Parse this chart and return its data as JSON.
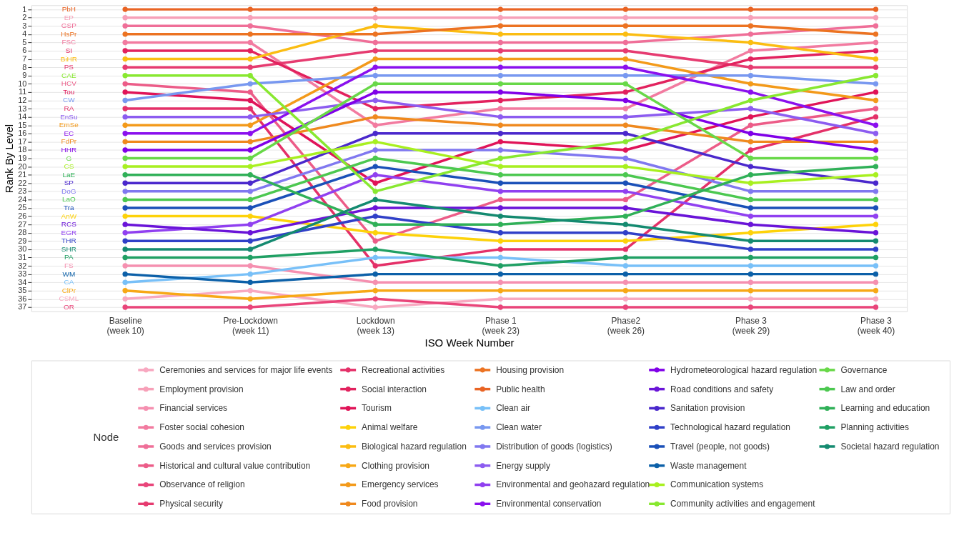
{
  "chart_data": {
    "type": "line",
    "xlabel": "ISO Week Number",
    "ylabel": "Rank By Level",
    "legend_title": "Node",
    "legend": "bottom",
    "grid": true,
    "marker": "circle",
    "line_style": "solid",
    "categories": [
      "Baseline\n(week 10)",
      "Pre-Lockdown\n(week 11)",
      "Lockdown\n(week 13)",
      "Phase 1\n(week 23)",
      "Phase2\n(week 26)",
      "Phase 3\n(week 29)",
      "Phase 3\n(week 40)"
    ],
    "ylim": [
      37.5,
      0.5
    ],
    "yticks": [
      1,
      2,
      3,
      4,
      5,
      6,
      7,
      8,
      9,
      10,
      11,
      12,
      13,
      14,
      15,
      16,
      17,
      18,
      19,
      20,
      21,
      22,
      23,
      24,
      25,
      26,
      27,
      28,
      29,
      30,
      31,
      32,
      33,
      34,
      35,
      36,
      37
    ],
    "series": [
      {
        "name": "Ceremonies and services for major life events",
        "color": "#f8a8c0",
        "values": [
          36,
          35,
          37,
          36,
          36,
          36,
          36
        ]
      },
      {
        "name": "Employment provision",
        "color": "#f7a0b8",
        "values": [
          2,
          2,
          2,
          2,
          2,
          2,
          2
        ]
      },
      {
        "name": "Financial services",
        "color": "#f590b0",
        "values": [
          32,
          32,
          34,
          34,
          34,
          34,
          34
        ]
      },
      {
        "name": "Foster social cohesion",
        "color": "#f27ba0",
        "values": [
          5,
          5,
          15,
          13,
          13,
          6,
          5
        ]
      },
      {
        "name": "Goods and services provision",
        "color": "#ef6f98",
        "values": [
          3,
          3,
          5,
          5,
          5,
          4,
          3
        ]
      },
      {
        "name": "Historical and cultural value contribution",
        "color": "#ec5c88",
        "values": [
          10,
          11,
          29,
          24,
          24,
          15,
          13
        ]
      },
      {
        "name": "Observance of religion",
        "color": "#e9457a",
        "values": [
          37,
          37,
          36,
          37,
          37,
          37,
          37
        ]
      },
      {
        "name": "Physical security",
        "color": "#e63b70",
        "values": [
          8,
          8,
          6,
          6,
          6,
          8,
          8
        ]
      },
      {
        "name": "Recreational activities",
        "color": "#e43068",
        "values": [
          13,
          13,
          32,
          30,
          30,
          18,
          14
        ]
      },
      {
        "name": "Social interaction",
        "color": "#e2225e",
        "values": [
          6,
          6,
          13,
          12,
          11,
          7,
          6
        ]
      },
      {
        "name": "Tourism",
        "color": "#e01458",
        "values": [
          11,
          12,
          22,
          17,
          18,
          14,
          11
        ]
      },
      {
        "name": "Animal welfare",
        "color": "#fdd20a",
        "values": [
          26,
          26,
          28,
          29,
          29,
          28,
          27
        ]
      },
      {
        "name": "Biological hazard regulation",
        "color": "#fbbd12",
        "values": [
          7,
          7,
          3,
          4,
          4,
          5,
          7
        ]
      },
      {
        "name": "Clothing provision",
        "color": "#f7a816",
        "values": [
          35,
          36,
          35,
          35,
          35,
          35,
          35
        ]
      },
      {
        "name": "Emergency services",
        "color": "#f39a1a",
        "values": [
          15,
          15,
          7,
          7,
          7,
          10,
          12
        ]
      },
      {
        "name": "Food provision",
        "color": "#ef891e",
        "values": [
          17,
          17,
          14,
          15,
          15,
          17,
          17
        ]
      },
      {
        "name": "Housing provision",
        "color": "#ec7322",
        "values": [
          4,
          4,
          4,
          3,
          3,
          3,
          4
        ]
      },
      {
        "name": "Public health",
        "color": "#e96424",
        "values": [
          1,
          1,
          1,
          1,
          1,
          1,
          1
        ]
      },
      {
        "name": "Clean air",
        "color": "#78c0f8",
        "values": [
          34,
          33,
          31,
          31,
          32,
          32,
          32
        ]
      },
      {
        "name": "Clean water",
        "color": "#7898f0",
        "values": [
          12,
          10,
          9,
          9,
          9,
          9,
          10
        ]
      },
      {
        "name": "Distribution of goods (logistics)",
        "color": "#8078f0",
        "values": [
          23,
          23,
          18,
          18,
          19,
          23,
          23
        ]
      },
      {
        "name": "Energy supply",
        "color": "#8c5cf0",
        "values": [
          14,
          14,
          12,
          14,
          14,
          13,
          16
        ]
      },
      {
        "name": "Environmental and geohazard regulation",
        "color": "#9040f0",
        "values": [
          28,
          27,
          21,
          23,
          23,
          26,
          26
        ]
      },
      {
        "name": "Environmental conservation",
        "color": "#8a10ee",
        "values": [
          16,
          16,
          8,
          8,
          8,
          11,
          15
        ]
      },
      {
        "name": "Hydrometeorological hazard regulation",
        "color": "#8000e8",
        "values": [
          18,
          18,
          11,
          11,
          12,
          16,
          18
        ]
      },
      {
        "name": "Road conditions and safety",
        "color": "#6a14d8",
        "values": [
          27,
          28,
          25,
          25,
          25,
          27,
          28
        ]
      },
      {
        "name": "Sanitation provision",
        "color": "#4a28cc",
        "values": [
          22,
          22,
          16,
          16,
          16,
          20,
          22
        ]
      },
      {
        "name": "Technological hazard regulation",
        "color": "#3040c8",
        "values": [
          29,
          29,
          26,
          28,
          28,
          30,
          30
        ]
      },
      {
        "name": "Travel (people, not goods)",
        "color": "#1a50b8",
        "values": [
          25,
          25,
          20,
          22,
          22,
          25,
          25
        ]
      },
      {
        "name": "Waste management",
        "color": "#0c60a8",
        "values": [
          33,
          34,
          33,
          33,
          33,
          33,
          33
        ]
      },
      {
        "name": "Communication systems",
        "color": "#a8f020",
        "values": [
          20,
          20,
          17,
          20,
          20,
          22,
          21
        ]
      },
      {
        "name": "Community activities and engagement",
        "color": "#88e830",
        "values": [
          9,
          9,
          23,
          19,
          17,
          12,
          9
        ]
      },
      {
        "name": "Governance",
        "color": "#68d848",
        "values": [
          19,
          19,
          10,
          10,
          10,
          19,
          19
        ]
      },
      {
        "name": "Law and order",
        "color": "#4cc850",
        "values": [
          24,
          24,
          19,
          21,
          21,
          24,
          24
        ]
      },
      {
        "name": "Learning and education",
        "color": "#30b058",
        "values": [
          21,
          21,
          27,
          27,
          26,
          21,
          20
        ]
      },
      {
        "name": "Planning activities",
        "color": "#20a064",
        "values": [
          31,
          31,
          30,
          32,
          31,
          31,
          31
        ]
      },
      {
        "name": "Societal hazard regulation",
        "color": "#148a70",
        "values": [
          30,
          30,
          24,
          26,
          27,
          29,
          29
        ]
      }
    ],
    "annotations": [
      "PbH",
      "EP",
      "GSP",
      "HsPr",
      "FSC",
      "SI",
      "BiHR",
      "PS",
      "CAE",
      "HCV",
      "Tou",
      "CW",
      "RA",
      "EnSu",
      "EmSe",
      "EC",
      "FdPr",
      "HHR",
      "G",
      "CS",
      "LaE",
      "SP",
      "DoG",
      "LaO",
      "Tra",
      "AnW",
      "RCS",
      "EGR",
      "THR",
      "SHR",
      "PA",
      "FS",
      "WM",
      "CA",
      "ClPr",
      "CSML",
      "OR"
    ]
  }
}
